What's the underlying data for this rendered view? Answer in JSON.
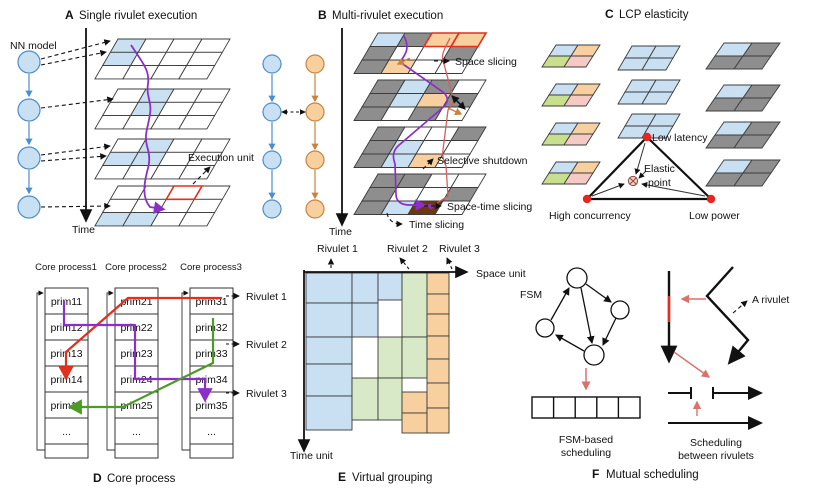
{
  "colors": {
    "blue_fill": "#C9DFF2",
    "blue_stroke": "#4E8FC7",
    "orange_fill": "#F8D0A0",
    "orange_stroke": "#C8823C",
    "green_fill": "#D7E9C6",
    "yellow_green_fill": "#C9DF8E",
    "pink_fill": "#F6CAC4",
    "gray_fill": "#8E8E8E",
    "dark_brown": "#6E3710",
    "red": "#E0301E",
    "purple": "#8B2FC9",
    "green_path": "#4E9A27",
    "salmon": "#D9726A",
    "grid_stroke": "#3C3C3C"
  },
  "panels": {
    "a": {
      "letter": "A",
      "title": "Single rivulet execution",
      "nn_model": "NN model",
      "time": "Time",
      "execution_unit": "Execution unit"
    },
    "b": {
      "letter": "B",
      "title": "Multi-rivulet execution",
      "time": "Time",
      "space_slicing": "Space slicing",
      "selective_shutdown": "Selective shutdown",
      "space_time_slicing": "Space-time slicing",
      "time_slicing": "Time slicing"
    },
    "c": {
      "letter": "C",
      "title": "LCP elasticity",
      "low_latency": "Low latency",
      "elastic_line1": "Elastic",
      "elastic_line2": "point",
      "high_concurrency": "High concurrency",
      "low_power": "Low power"
    },
    "d": {
      "letter": "D",
      "caption": "Core process",
      "columns": [
        {
          "title": "Core process1",
          "cells": [
            "prim11",
            "prim12",
            "prim13",
            "prim14",
            "prim15",
            "..."
          ]
        },
        {
          "title": "Core process2",
          "cells": [
            "prim21",
            "prim22",
            "prim23",
            "prim24",
            "prim25",
            "..."
          ]
        },
        {
          "title": "Core process3",
          "cells": [
            "prim31",
            "prim32",
            "prim33",
            "prim34",
            "prim35",
            "..."
          ]
        }
      ],
      "rivulets": [
        "Rivulet 1",
        "Rivulet 2",
        "Rivulet 3"
      ]
    },
    "e": {
      "letter": "E",
      "caption": "Virtual grouping",
      "rivulets": [
        "Rivulet 1",
        "Rivulet 2",
        "Rivulet 3"
      ],
      "space_axis": "Space unit",
      "time_axis": "Time unit"
    },
    "f": {
      "letter": "F",
      "caption": "Mutual scheduling",
      "fsm": "FSM",
      "fsm_caption1": "FSM-based",
      "fsm_caption2": "scheduling",
      "a_rivulet": "A rivulet",
      "between_caption1": "Scheduling",
      "between_caption2": "between rivulets"
    }
  }
}
